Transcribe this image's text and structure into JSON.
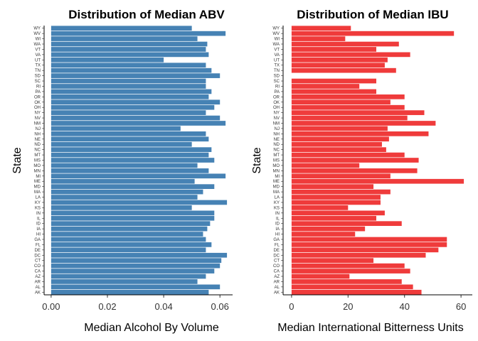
{
  "chart_data": [
    {
      "type": "bar",
      "orientation": "horizontal",
      "title": "Distribution of Median ABV",
      "xlabel": "Median Alcohol By Volume",
      "ylabel": "State",
      "xlim": [
        -0.0025,
        0.0645
      ],
      "xticks": [
        "0.00",
        "0.02",
        "0.04",
        "0.06"
      ],
      "color": "#4682B4",
      "grid": false,
      "categories": [
        "AK",
        "AL",
        "AR",
        "AZ",
        "CA",
        "CO",
        "CT",
        "DC",
        "DE",
        "FL",
        "GA",
        "HI",
        "IA",
        "ID",
        "IL",
        "IN",
        "KS",
        "KY",
        "LA",
        "MA",
        "MD",
        "ME",
        "MI",
        "MN",
        "MO",
        "MS",
        "MT",
        "NC",
        "ND",
        "NE",
        "NH",
        "NJ",
        "NM",
        "NV",
        "NY",
        "OH",
        "OK",
        "OR",
        "PA",
        "RI",
        "SC",
        "SD",
        "TN",
        "TX",
        "UT",
        "VA",
        "VT",
        "WA",
        "WI",
        "WV",
        "WY"
      ],
      "values": [
        0.056,
        0.06,
        0.052,
        0.055,
        0.058,
        0.06,
        0.0605,
        0.0625,
        0.055,
        0.057,
        0.055,
        0.054,
        0.0555,
        0.0565,
        0.058,
        0.058,
        0.05,
        0.0625,
        0.052,
        0.054,
        0.058,
        0.051,
        0.062,
        0.056,
        0.052,
        0.058,
        0.056,
        0.057,
        0.05,
        0.056,
        0.055,
        0.046,
        0.062,
        0.06,
        0.055,
        0.058,
        0.06,
        0.056,
        0.057,
        0.055,
        0.055,
        0.06,
        0.057,
        0.055,
        0.04,
        0.056,
        0.055,
        0.0555,
        0.052,
        0.062,
        0.05
      ]
    },
    {
      "type": "bar",
      "orientation": "horizontal",
      "title": "Distribution of Median IBU",
      "xlabel": "Median International Bitterness Units",
      "ylabel": "State",
      "xlim": [
        -3,
        64
      ],
      "xticks": [
        "0",
        "20",
        "40",
        "60"
      ],
      "color": "#EF3B3B",
      "grid": false,
      "categories": [
        "AK",
        "AL",
        "AR",
        "AZ",
        "CA",
        "CO",
        "CT",
        "DC",
        "DE",
        "FL",
        "GA",
        "HI",
        "IA",
        "ID",
        "IL",
        "IN",
        "KS",
        "KY",
        "LA",
        "MA",
        "MD",
        "ME",
        "MI",
        "MN",
        "MO",
        "MS",
        "MT",
        "NC",
        "ND",
        "NE",
        "NH",
        "NJ",
        "NM",
        "NV",
        "NY",
        "OH",
        "OK",
        "OR",
        "PA",
        "RI",
        "SC",
        "SD",
        "TN",
        "TX",
        "UT",
        "VA",
        "VT",
        "WA",
        "WI",
        "WV",
        "WY"
      ],
      "values": [
        46,
        43,
        39,
        20.5,
        42,
        40,
        29,
        47.5,
        52,
        55,
        55,
        22.5,
        26,
        39,
        30,
        33,
        20,
        31.5,
        31.5,
        35,
        29,
        61,
        35,
        44.5,
        24,
        45,
        40,
        33.5,
        32,
        34.5,
        48.5,
        34,
        51,
        41,
        47,
        40,
        35,
        40,
        30,
        24,
        30,
        null,
        37,
        33,
        34,
        42,
        30,
        38,
        19,
        57.5,
        21
      ]
    }
  ]
}
